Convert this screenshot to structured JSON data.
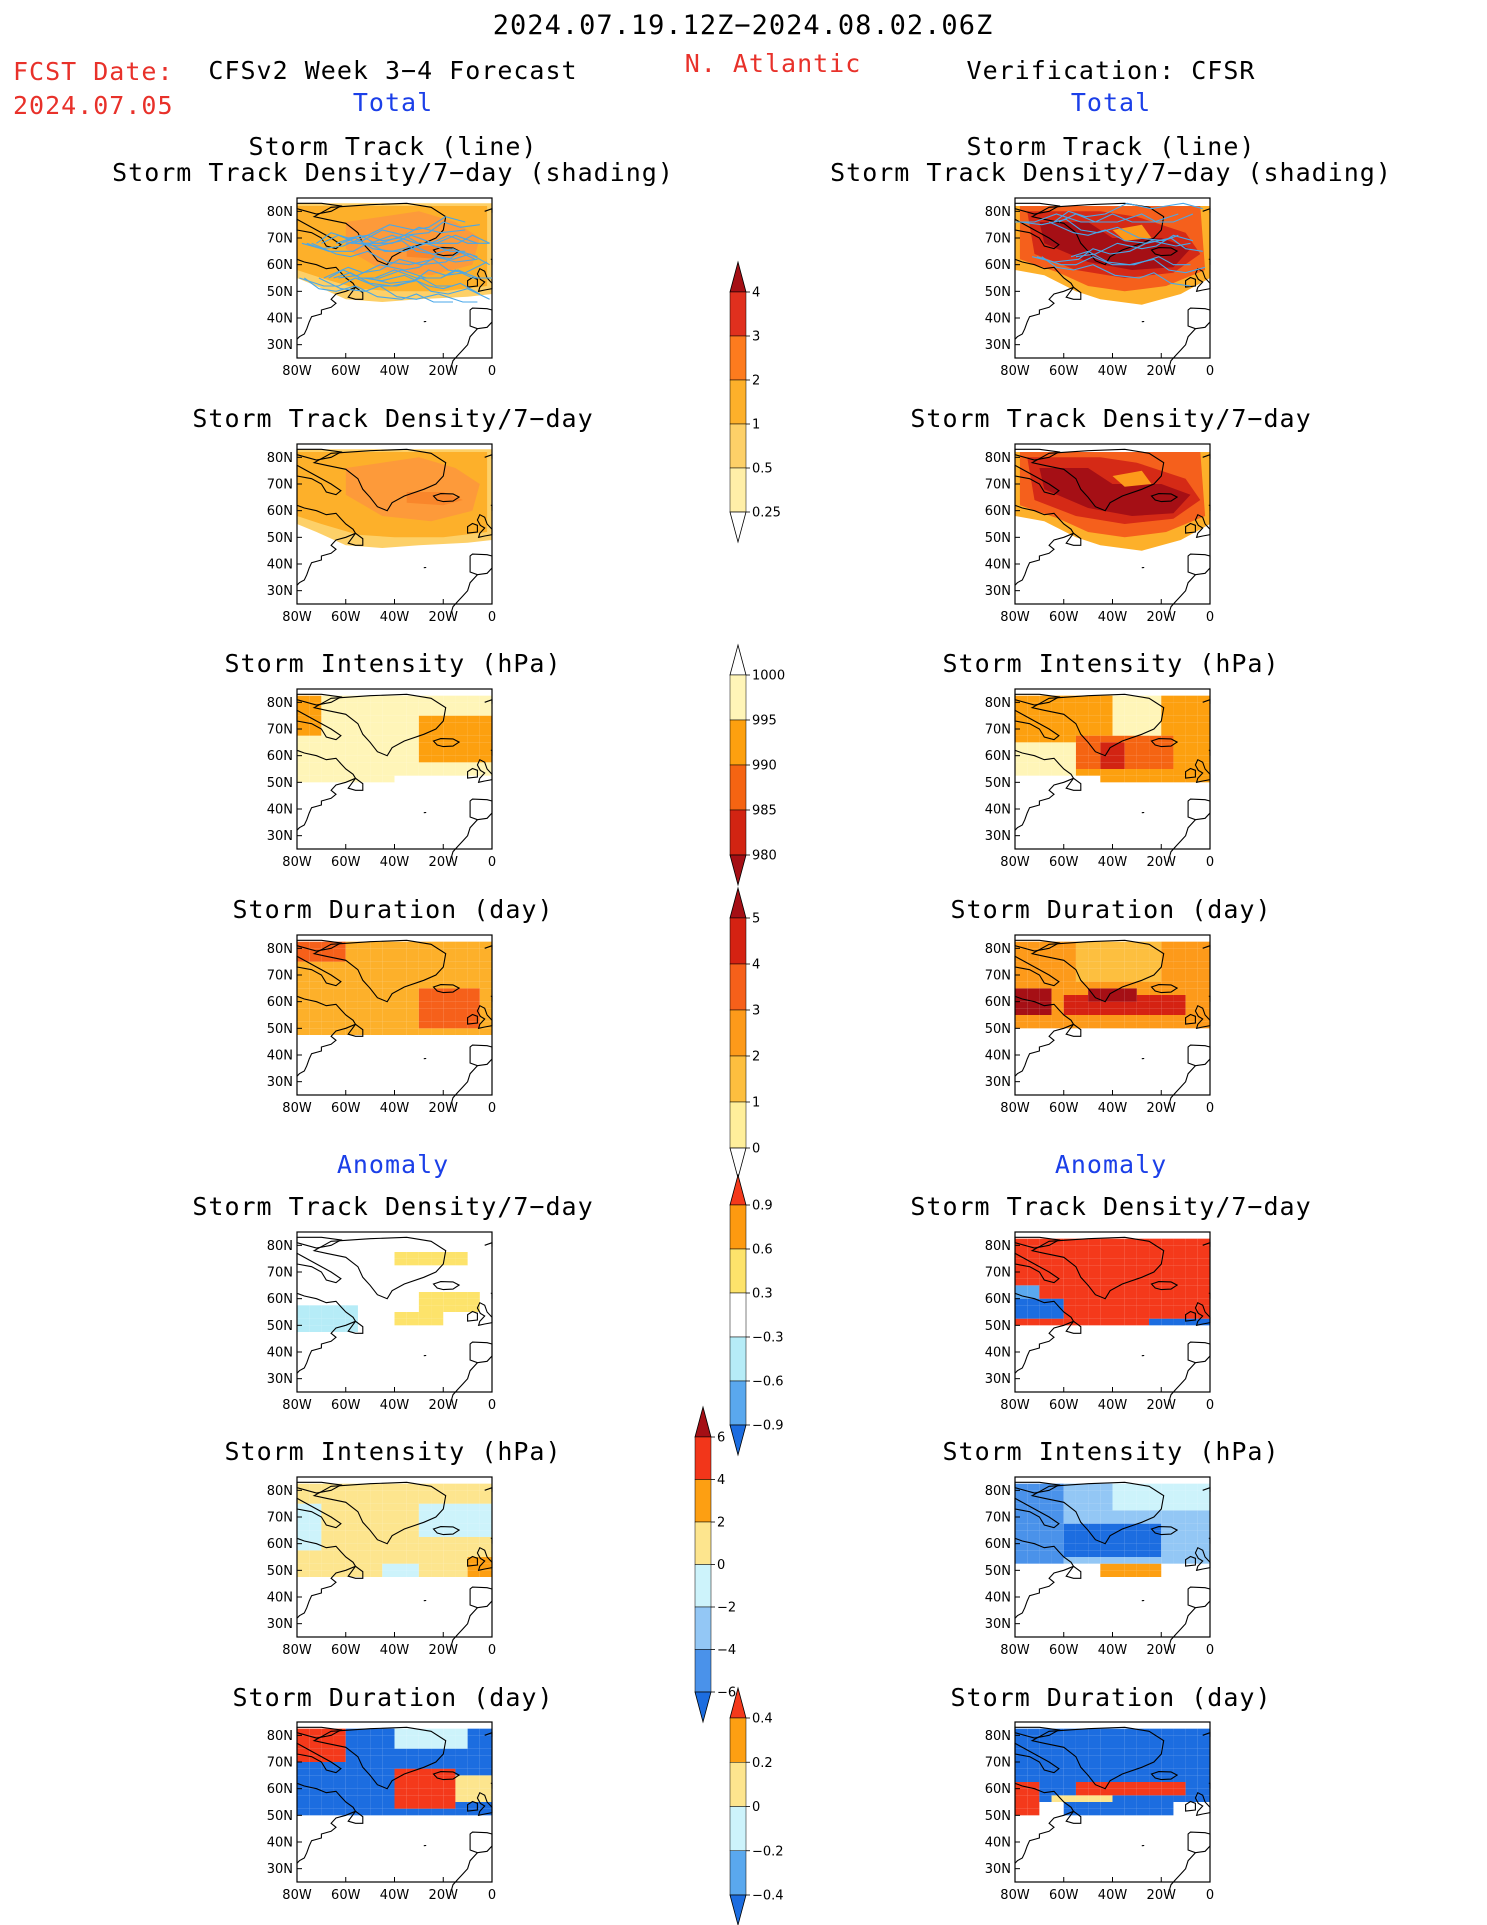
{
  "header": {
    "period": "2024.07.19.12Z−2024.08.02.06Z",
    "fcst_label": "FCST Date:",
    "fcst_date": "2024.07.05",
    "model": "CFSv2 Week 3−4 Forecast",
    "region": "N. Atlantic",
    "verification": "Verification: CFSR"
  },
  "sections": {
    "total": "Total",
    "anomaly": "Anomaly"
  },
  "panel_titles": {
    "track_line": "Storm Track (line)",
    "track_shading": "Storm Track Density/7−day (shading)",
    "density": "Storm Track Density/7−day",
    "intensity": "Storm Intensity (hPa)",
    "duration": "Storm Duration (day)"
  },
  "axes": {
    "lat_ticks": [
      "80N",
      "70N",
      "60N",
      "50N",
      "40N",
      "30N"
    ],
    "lon_ticks": [
      "80W",
      "60W",
      "40W",
      "20W",
      "0"
    ]
  },
  "colorbars": [
    {
      "id": "density_total",
      "labels": [
        "4",
        "3",
        "2",
        "1",
        "0.5",
        "0.25"
      ],
      "colors": [
        "#a50f15",
        "#e0301e",
        "#fd7b1e",
        "#fdb02a",
        "#fdd068",
        "#ffefa8",
        "#ffffff"
      ]
    },
    {
      "id": "intensity_total",
      "labels": [
        "1000",
        "995",
        "990",
        "985",
        "980"
      ],
      "colors": [
        "#ffffff",
        "#fff5b8",
        "#fda00f",
        "#f56412",
        "#d22412",
        "#a50f15"
      ]
    },
    {
      "id": "duration_total",
      "labels": [
        "5",
        "4",
        "3",
        "2",
        "1",
        "0"
      ],
      "colors": [
        "#a50f15",
        "#d52212",
        "#f6601a",
        "#fd9a1a",
        "#fdbf3f",
        "#ffef9b",
        "#ffffff"
      ]
    },
    {
      "id": "density_anom",
      "labels": [
        "0.9",
        "0.6",
        "0.3",
        "−0.3",
        "−0.6",
        "−0.9"
      ],
      "colors": [
        "#f4391b",
        "#fd9a10",
        "#fde36b",
        "#ffffff",
        "#b6ecf7",
        "#5aa8ee",
        "#1c6de0"
      ]
    },
    {
      "id": "intensity_anom",
      "labels": [
        "6",
        "4",
        "2",
        "0",
        "−2",
        "−4",
        "−6"
      ],
      "colors": [
        "#a50f15",
        "#f2361a",
        "#fd9f12",
        "#fde58e",
        "#cdf3fb",
        "#93c7f5",
        "#4a92ea",
        "#1c6de0"
      ]
    },
    {
      "id": "duration_anom",
      "labels": [
        "0.4",
        "0.2",
        "0",
        "−0.2",
        "−0.4"
      ],
      "colors": [
        "#f4391b",
        "#fd9f12",
        "#fde58e",
        "#cdf3fb",
        "#5aa8ee",
        "#1c6de0"
      ]
    }
  ],
  "chart_data": [
    {
      "type": "heatmap",
      "panel": "forecast_track_total",
      "title": "Storm Track (line) / Storm Track Density/7−day (shading)",
      "lat_range": [
        25,
        85
      ],
      "lon_range": [
        -80,
        0
      ]
    },
    {
      "type": "heatmap",
      "panel": "verification_track_total",
      "title": "Storm Track (line) / Storm Track Density/7−day (shading)",
      "lat_range": [
        25,
        85
      ],
      "lon_range": [
        -80,
        0
      ]
    },
    {
      "type": "heatmap",
      "panel": "forecast_density_total",
      "title": "Storm Track Density/7−day",
      "lat_range": [
        25,
        85
      ],
      "lon_range": [
        -80,
        0
      ]
    },
    {
      "type": "heatmap",
      "panel": "verification_density_total",
      "title": "Storm Track Density/7−day",
      "lat_range": [
        25,
        85
      ],
      "lon_range": [
        -80,
        0
      ]
    },
    {
      "type": "heatmap",
      "panel": "forecast_intensity_total",
      "title": "Storm Intensity (hPa)",
      "lat_range": [
        25,
        85
      ],
      "lon_range": [
        -80,
        0
      ]
    },
    {
      "type": "heatmap",
      "panel": "verification_intensity_total",
      "title": "Storm Intensity (hPa)",
      "lat_range": [
        25,
        85
      ],
      "lon_range": [
        -80,
        0
      ]
    },
    {
      "type": "heatmap",
      "panel": "forecast_duration_total",
      "title": "Storm Duration (day)",
      "lat_range": [
        25,
        85
      ],
      "lon_range": [
        -80,
        0
      ]
    },
    {
      "type": "heatmap",
      "panel": "verification_duration_total",
      "title": "Storm Duration (day)",
      "lat_range": [
        25,
        85
      ],
      "lon_range": [
        -80,
        0
      ]
    },
    {
      "type": "heatmap",
      "panel": "forecast_density_anom",
      "title": "Storm Track Density/7−day",
      "lat_range": [
        25,
        85
      ],
      "lon_range": [
        -80,
        0
      ]
    },
    {
      "type": "heatmap",
      "panel": "verification_density_anom",
      "title": "Storm Track Density/7−day",
      "lat_range": [
        25,
        85
      ],
      "lon_range": [
        -80,
        0
      ]
    },
    {
      "type": "heatmap",
      "panel": "forecast_intensity_anom",
      "title": "Storm Intensity (hPa)",
      "lat_range": [
        25,
        85
      ],
      "lon_range": [
        -80,
        0
      ]
    },
    {
      "type": "heatmap",
      "panel": "verification_intensity_anom",
      "title": "Storm Intensity (hPa)",
      "lat_range": [
        25,
        85
      ],
      "lon_range": [
        -80,
        0
      ]
    },
    {
      "type": "heatmap",
      "panel": "forecast_duration_anom",
      "title": "Storm Duration (day)",
      "lat_range": [
        25,
        85
      ],
      "lon_range": [
        -80,
        0
      ]
    },
    {
      "type": "heatmap",
      "panel": "verification_duration_anom",
      "title": "Storm Duration (day)",
      "lat_range": [
        25,
        85
      ],
      "lon_range": [
        -80,
        0
      ]
    }
  ]
}
